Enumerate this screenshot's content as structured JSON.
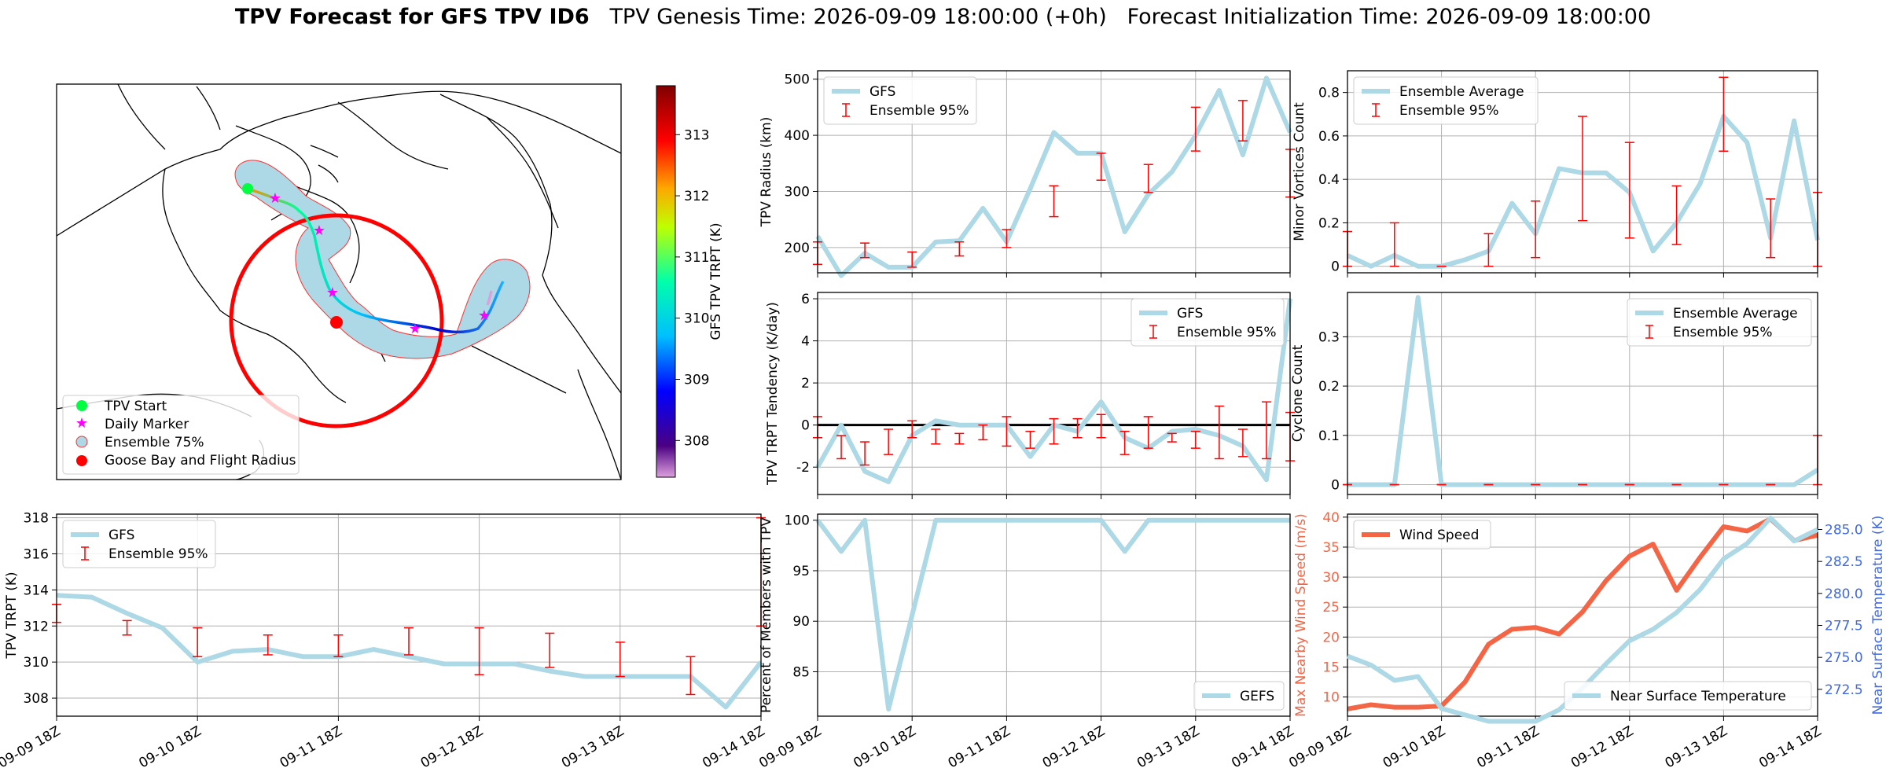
{
  "title": {
    "bold": "TPV Forecast for GFS TPV ID6",
    "genesis": "TPV Genesis Time: 2026-09-09 18:00:00 (+0h)",
    "init": "Forecast Initialization Time: 2026-09-09 18:00:00"
  },
  "colors": {
    "gfs_line": "#add8e6",
    "ensemble_err": "#ff0000",
    "wind": "#f46546",
    "temp_line": "#add8e6",
    "temp_axis": "#4169e1",
    "zero_line": "#000000"
  },
  "map": {
    "colorbar_label": "GFS TPV TRPT (K)",
    "colorbar_ticks": [
      "308",
      "309",
      "310",
      "311",
      "312",
      "313"
    ],
    "colorbar_range": [
      307.4,
      313.8
    ],
    "legend": [
      "TPV Start",
      "Daily Marker",
      "Ensemble 75%",
      "Goose Bay and Flight Radius"
    ]
  },
  "time_ticks": [
    "09-09 18Z",
    "09-10 18Z",
    "09-11 18Z",
    "09-12 18Z",
    "09-13 18Z",
    "09-14 18Z"
  ],
  "chart_data": [
    {
      "id": "trpt",
      "type": "line",
      "x_range": [
        0,
        20
      ],
      "ylabel": "TPV TRPT (K)",
      "ylim": [
        307,
        318.2
      ],
      "yticks": [
        308,
        310,
        312,
        314,
        316,
        318
      ],
      "legend": "top-left",
      "series": [
        {
          "name": "GFS",
          "values": [
            313.7,
            313.6,
            312.7,
            311.9,
            310.0,
            310.6,
            310.7,
            310.3,
            310.3,
            310.7,
            310.3,
            309.9,
            309.9,
            309.9,
            309.5,
            309.2,
            309.2,
            309.2,
            309.2,
            307.5,
            310.0
          ]
        }
      ],
      "errorbars": {
        "name": "Ensemble 95%",
        "x": [
          0,
          2,
          4,
          6,
          8,
          10,
          12,
          14,
          16,
          18,
          20
        ],
        "low": [
          312.2,
          311.5,
          310.3,
          310.4,
          310.3,
          310.4,
          309.3,
          309.7,
          309.2,
          308.2,
          312.0
        ],
        "high": [
          313.2,
          312.3,
          311.9,
          311.5,
          311.5,
          311.9,
          311.9,
          311.6,
          311.1,
          310.3,
          318.0
        ]
      }
    },
    {
      "id": "radius",
      "type": "line",
      "x_range": [
        0,
        20
      ],
      "ylabel": "TPV Radius (km)",
      "ylim": [
        155,
        515
      ],
      "yticks": [
        200,
        300,
        400,
        500
      ],
      "legend": "top-left",
      "series": [
        {
          "name": "GFS",
          "values": [
            220,
            150,
            190,
            165,
            165,
            210,
            212,
            270,
            210,
            305,
            405,
            368,
            368,
            228,
            295,
            335,
            400,
            480,
            365,
            502,
            405
          ]
        }
      ],
      "errorbars": {
        "name": "Ensemble 95%",
        "x": [
          0,
          2,
          4,
          6,
          8,
          10,
          12,
          14,
          16,
          18,
          20
        ],
        "low": [
          170,
          182,
          165,
          185,
          200,
          255,
          320,
          298,
          372,
          390,
          290
        ],
        "high": [
          210,
          208,
          192,
          210,
          232,
          310,
          368,
          348,
          450,
          462,
          375
        ]
      }
    },
    {
      "id": "minor",
      "type": "line",
      "x_range": [
        0,
        20
      ],
      "ylabel": "Minor Vortices Count",
      "ylim": [
        -0.03,
        0.9
      ],
      "yticks": [
        0.0,
        0.2,
        0.4,
        0.6,
        0.8
      ],
      "legend": "top-left",
      "series": [
        {
          "name": "Ensemble Average",
          "values": [
            0.05,
            0.0,
            0.05,
            0.0,
            0.0,
            0.03,
            0.07,
            0.29,
            0.15,
            0.45,
            0.43,
            0.43,
            0.34,
            0.07,
            0.2,
            0.38,
            0.69,
            0.57,
            0.13,
            0.67,
            0.12
          ]
        }
      ],
      "errorbars": {
        "name": "Ensemble 95%",
        "x": [
          0,
          2,
          4,
          6,
          8,
          10,
          12,
          14,
          16,
          18,
          20
        ],
        "low": [
          0.0,
          0.0,
          0.0,
          0.0,
          0.04,
          0.21,
          0.13,
          0.1,
          0.53,
          0.04,
          0.0
        ],
        "high": [
          0.16,
          0.2,
          0.0,
          0.15,
          0.3,
          0.69,
          0.57,
          0.37,
          0.87,
          0.31,
          0.34
        ]
      }
    },
    {
      "id": "tendency",
      "type": "line",
      "x_range": [
        0,
        20
      ],
      "ylabel": "TPV TRPT Tendency (K/day)",
      "ylim": [
        -3.3,
        6.3
      ],
      "yticks": [
        -2,
        0,
        2,
        4,
        6
      ],
      "legend": "top-right",
      "zero_line": true,
      "series": [
        {
          "name": "GFS",
          "values": [
            -2.0,
            0.0,
            -2.2,
            -2.7,
            -0.5,
            0.2,
            0.0,
            0.0,
            0.0,
            -1.5,
            0.0,
            -0.3,
            1.1,
            -0.6,
            -1.1,
            -0.3,
            -0.2,
            -0.5,
            -1.0,
            -2.6,
            6.0
          ]
        }
      ],
      "errorbars": {
        "name": "Ensemble 95%",
        "x": [
          0,
          1,
          2,
          3,
          4,
          5,
          6,
          7,
          8,
          9,
          10,
          11,
          12,
          13,
          14,
          15,
          16,
          17,
          18,
          19,
          20
        ],
        "low": [
          -0.6,
          -1.6,
          -1.9,
          -1.4,
          -0.6,
          -0.9,
          -0.9,
          -0.7,
          -1.0,
          -1.1,
          -0.9,
          -0.6,
          -0.6,
          -1.4,
          -1.1,
          -0.8,
          -1.1,
          -1.6,
          -1.5,
          -1.6,
          -1.7
        ],
        "high": [
          0.4,
          -0.5,
          -0.8,
          -0.2,
          0.2,
          -0.2,
          -0.4,
          0.0,
          0.4,
          -0.3,
          0.3,
          0.3,
          0.5,
          -0.3,
          0.4,
          -0.4,
          -0.3,
          0.9,
          -0.2,
          1.1,
          0.6
        ]
      }
    },
    {
      "id": "cyclone",
      "type": "line",
      "x_range": [
        0,
        20
      ],
      "ylabel": "Cyclone Count",
      "ylim": [
        -0.02,
        0.39
      ],
      "yticks": [
        0.0,
        0.1,
        0.2,
        0.3
      ],
      "legend": "top-right",
      "series": [
        {
          "name": "Ensemble Average",
          "values": [
            0.0,
            0.0,
            0.0,
            0.38,
            0.0,
            0.0,
            0.0,
            0.0,
            0.0,
            0.0,
            0.0,
            0.0,
            0.0,
            0.0,
            0.0,
            0.0,
            0.0,
            0.0,
            0.0,
            0.0,
            0.03
          ]
        }
      ],
      "errorbars": {
        "name": "Ensemble 95%",
        "x": [
          0,
          2,
          4,
          6,
          8,
          10,
          12,
          14,
          16,
          18,
          20
        ],
        "low": [
          0.0,
          0.0,
          0.0,
          0.0,
          0.0,
          0.0,
          0.0,
          0.0,
          0.0,
          0.0,
          0.0
        ],
        "high": [
          0.0,
          0.0,
          0.0,
          0.0,
          0.0,
          0.0,
          0.0,
          0.0,
          0.0,
          0.0,
          0.1
        ]
      }
    },
    {
      "id": "percent",
      "type": "line",
      "x_range": [
        0,
        20
      ],
      "ylabel": "Percent of Members with TPV",
      "ylim": [
        80.6,
        100.6
      ],
      "yticks": [
        85,
        90,
        95,
        100
      ],
      "legend": "bottom-right",
      "series": [
        {
          "name": "GEFS",
          "values": [
            100,
            96.9,
            100,
            81.3,
            90.6,
            100,
            100,
            100,
            100,
            100,
            100,
            100,
            100,
            96.9,
            100,
            100,
            100,
            100,
            100,
            100,
            100
          ]
        }
      ]
    },
    {
      "id": "wind",
      "type": "line",
      "x_range": [
        0,
        20
      ],
      "ylabel": "Max Nearby Wind Speed (m/s)",
      "ylim": [
        6.8,
        40.5
      ],
      "yticks": [
        10,
        15,
        20,
        25,
        30,
        35,
        40
      ],
      "legend": "top-left",
      "series": [
        {
          "name": "Wind Speed",
          "values": [
            8.0,
            8.7,
            8.3,
            8.3,
            8.5,
            12.5,
            18.8,
            21.3,
            21.6,
            20.5,
            24.2,
            29.4,
            33.5,
            35.5,
            27.8,
            33.3,
            38.4,
            37.7,
            39.7,
            36.1,
            37.0
          ]
        }
      ]
    },
    {
      "id": "temp",
      "type": "line",
      "x_range": [
        0,
        20
      ],
      "ylabel": "Near Surface Temperature (K)",
      "ylim": [
        270.4,
        286.2
      ],
      "yticks": [
        272.5,
        275.0,
        277.5,
        280.0,
        282.5,
        285.0
      ],
      "axis": "right",
      "legend": "bottom-right",
      "series": [
        {
          "name": "Near Surface Temperature",
          "values": [
            275.1,
            274.4,
            273.2,
            273.5,
            271.0,
            270.5,
            270.0,
            270.0,
            270.0,
            270.9,
            272.6,
            274.5,
            276.3,
            277.2,
            278.5,
            280.3,
            282.7,
            283.9,
            285.9,
            284.1,
            285.0
          ]
        }
      ]
    }
  ]
}
